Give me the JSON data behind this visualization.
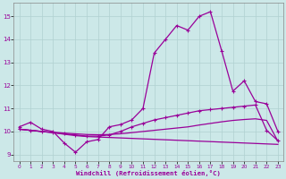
{
  "background_color": "#cce8e8",
  "grid_color": "#b0d0d0",
  "line_color": "#990099",
  "xlabel": "Windchill (Refroidissement éolien,°C)",
  "xlim": [
    -0.5,
    23.5
  ],
  "ylim": [
    8.7,
    15.6
  ],
  "yticks": [
    9,
    10,
    11,
    12,
    13,
    14,
    15
  ],
  "xticks": [
    0,
    1,
    2,
    3,
    4,
    5,
    6,
    7,
    8,
    9,
    10,
    11,
    12,
    13,
    14,
    15,
    16,
    17,
    18,
    19,
    20,
    21,
    22,
    23
  ],
  "line1_x": [
    0,
    1,
    2,
    3,
    4,
    5,
    6,
    7,
    8,
    9,
    10,
    11,
    12,
    13,
    14,
    15,
    16,
    17,
    18,
    19,
    20,
    21,
    22,
    23
  ],
  "line1_y": [
    10.2,
    10.4,
    10.1,
    10.0,
    9.5,
    9.1,
    9.55,
    9.65,
    10.2,
    10.3,
    10.5,
    11.0,
    13.4,
    14.0,
    14.6,
    14.4,
    15.0,
    15.2,
    13.5,
    11.75,
    12.2,
    11.3,
    11.2,
    10.0
  ],
  "line2_x": [
    0,
    1,
    2,
    3,
    4,
    5,
    6,
    7,
    8,
    9,
    10,
    11,
    12,
    13,
    14,
    15,
    16,
    17,
    18,
    19,
    20,
    21,
    22,
    23
  ],
  "line2_y": [
    10.1,
    10.05,
    10.0,
    9.95,
    9.9,
    9.85,
    9.8,
    9.8,
    9.85,
    10.0,
    10.2,
    10.35,
    10.5,
    10.6,
    10.7,
    10.8,
    10.9,
    10.95,
    11.0,
    11.05,
    11.1,
    11.15,
    10.05,
    9.6
  ],
  "line3_x": [
    0,
    1,
    2,
    3,
    4,
    5,
    6,
    7,
    8,
    9,
    10,
    11,
    12,
    13,
    14,
    15,
    16,
    17,
    18,
    19,
    20,
    21,
    22,
    23
  ],
  "line3_y": [
    10.1,
    10.05,
    10.0,
    9.95,
    9.88,
    9.82,
    9.78,
    9.76,
    9.74,
    9.72,
    9.7,
    9.68,
    9.66,
    9.64,
    9.62,
    9.6,
    9.58,
    9.56,
    9.54,
    9.52,
    9.5,
    9.48,
    9.46,
    9.44
  ],
  "line4_x": [
    0,
    1,
    2,
    3,
    4,
    5,
    6,
    7,
    8,
    9,
    10,
    11,
    12,
    13,
    14,
    15,
    16,
    17,
    18,
    19,
    20,
    21,
    22,
    23
  ],
  "line4_y": [
    10.1,
    10.05,
    10.0,
    9.97,
    9.93,
    9.9,
    9.87,
    9.86,
    9.87,
    9.9,
    9.95,
    10.0,
    10.05,
    10.1,
    10.15,
    10.2,
    10.28,
    10.35,
    10.42,
    10.48,
    10.52,
    10.55,
    10.48,
    9.58
  ]
}
